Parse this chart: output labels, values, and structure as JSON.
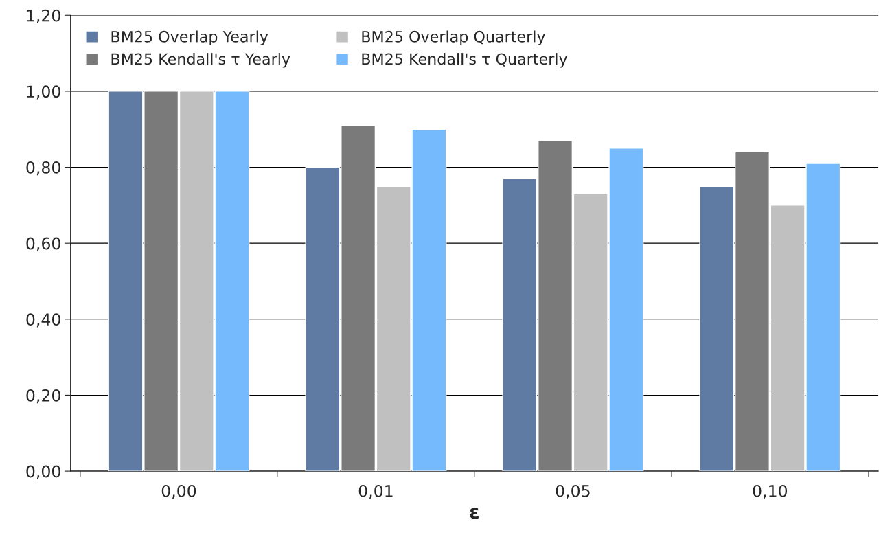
{
  "chart_data": {
    "type": "bar",
    "xlabel": "ε",
    "categories": [
      "0,00",
      "0,01",
      "0,05",
      "0,10"
    ],
    "series": [
      {
        "name": "BM25 Overlap Yearly",
        "color": "#5f7ba3",
        "values": [
          1.0,
          0.8,
          0.77,
          0.75
        ]
      },
      {
        "name": "BM25 Kendall's τ Yearly",
        "color": "#7a7a7a",
        "values": [
          1.0,
          0.91,
          0.87,
          0.84
        ]
      },
      {
        "name": "BM25 Overlap Quarterly",
        "color": "#c0c0c0",
        "values": [
          1.0,
          0.75,
          0.73,
          0.7
        ]
      },
      {
        "name": "BM25 Kendall's τ Quarterly",
        "color": "#75bafd",
        "values": [
          1.0,
          0.9,
          0.85,
          0.81
        ]
      }
    ],
    "ylim": [
      0,
      1.2
    ],
    "yticks": [
      {
        "value": 0,
        "label": "0,00"
      },
      {
        "value": 0.2,
        "label": "0,20"
      },
      {
        "value": 0.4,
        "label": "0,40"
      },
      {
        "value": 0.6,
        "label": "0,60"
      },
      {
        "value": 0.8,
        "label": "0,80"
      },
      {
        "value": 1.0,
        "label": "1,00"
      },
      {
        "value": 1.2,
        "label": "1,20"
      }
    ],
    "grid": "y",
    "legend": "top left"
  }
}
